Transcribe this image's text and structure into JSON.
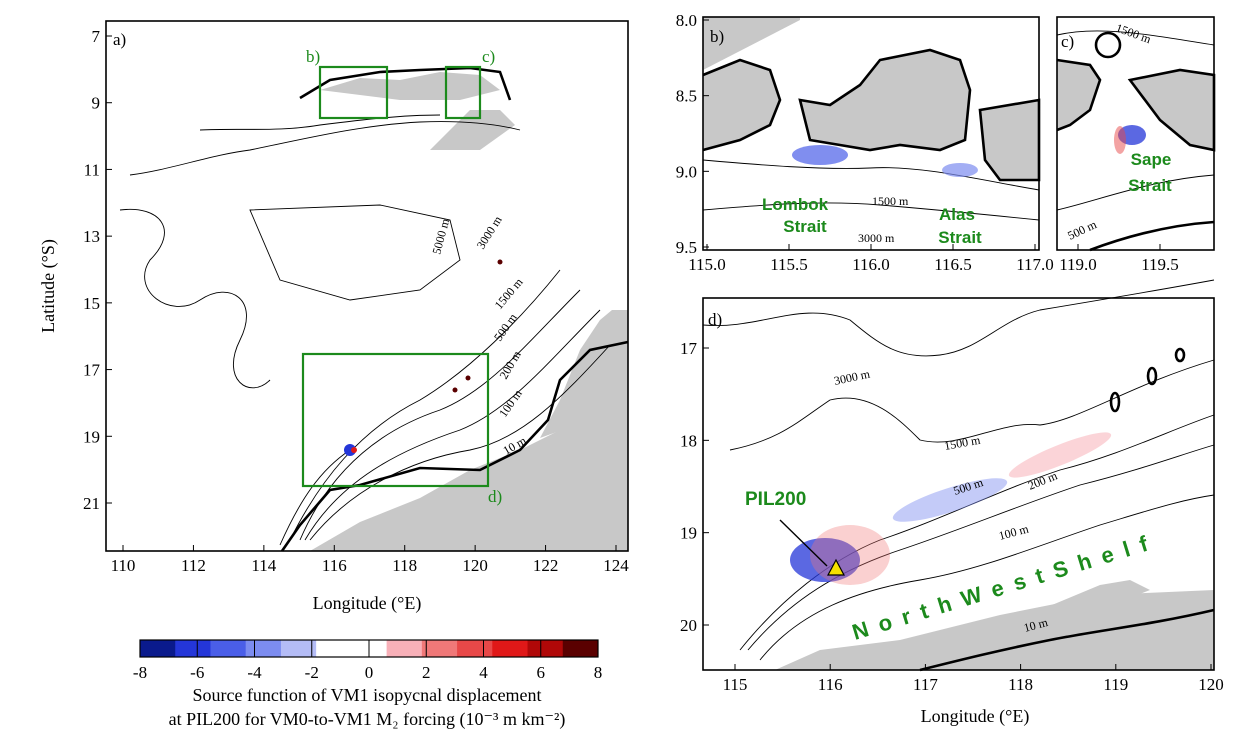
{
  "panels": {
    "a": {
      "label": "a)",
      "x_ticks": [
        "110",
        "112",
        "114",
        "116",
        "118",
        "120",
        "122",
        "124"
      ],
      "y_ticks": [
        "7",
        "9",
        "11",
        "13",
        "15",
        "17",
        "19",
        "21"
      ],
      "xlabel": "Longitude (°E)",
      "ylabel": "Latitude (°S)",
      "box_labels": [
        "b)",
        "c)",
        "d)"
      ],
      "contour_labels": [
        "5000 m",
        "3000 m",
        "1500 m",
        "500 m",
        "200 m",
        "100 m",
        "10 m"
      ]
    },
    "b": {
      "label": "b)",
      "x_ticks": [
        "115.0",
        "115.5",
        "116.0",
        "116.5",
        "117.0"
      ],
      "y_ticks": [
        "8.0",
        "8.5",
        "9.0",
        "9.5"
      ],
      "strait_1": [
        "Lombok",
        "Strait"
      ],
      "strait_2": [
        "Alas",
        "Strait"
      ],
      "contour_labels": [
        "1500 m",
        "3000 m"
      ]
    },
    "c": {
      "label": "c)",
      "x_ticks": [
        "119.0",
        "119.5"
      ],
      "strait": [
        "Sape",
        "Strait"
      ],
      "contour_labels": [
        "1500 m",
        "500 m"
      ]
    },
    "d": {
      "label": "d)",
      "x_ticks": [
        "115",
        "116",
        "117",
        "118",
        "119",
        "120"
      ],
      "y_ticks": [
        "17",
        "18",
        "19",
        "20"
      ],
      "xlabel": "Longitude (°E)",
      "station": "PIL200",
      "shelf_label": "NorthWestShelf",
      "contour_labels": [
        "3000 m",
        "1500 m",
        "500 m",
        "200 m",
        "100 m",
        "10 m"
      ]
    }
  },
  "colorbar": {
    "ticks": [
      "-8",
      "-6",
      "-4",
      "-2",
      "0",
      "2",
      "4",
      "6",
      "8"
    ],
    "colors": [
      "#0a1a8c",
      "#2436d8",
      "#4a5ee8",
      "#7c8cf0",
      "#b4bcf6",
      "#ffffff",
      "#ffffff",
      "#f8b0b8",
      "#f07878",
      "#e84848",
      "#e01818",
      "#b00808",
      "#5a0000"
    ],
    "caption_line1": "Source function of VM1 isopycnal displacement",
    "caption_line2": "at PIL200 for VM0-to-VM1 M₂ forcing (10⁻³ m km⁻²)"
  },
  "colors": {
    "land": "#c8c8c8",
    "box": "#1c8a1c",
    "station_marker": "#f5e000"
  }
}
